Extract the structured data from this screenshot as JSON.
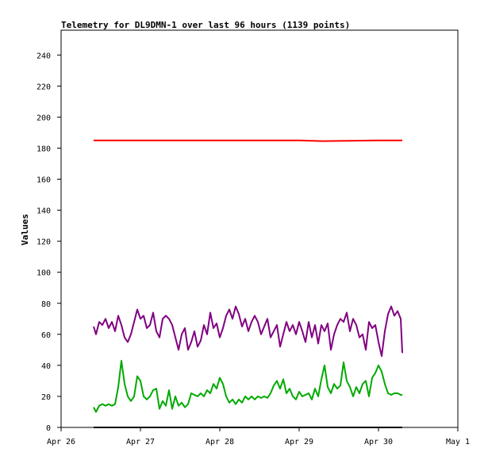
{
  "chart_data": {
    "type": "line",
    "title": "Telemetry for DL9DMN-1 over last 96 hours (1139 points)",
    "xlabel": "",
    "ylabel": "Values",
    "ylim": [
      0,
      256
    ],
    "yticks": [
      0,
      20,
      40,
      60,
      80,
      100,
      120,
      140,
      160,
      180,
      200,
      220,
      240
    ],
    "xlim": [
      "Apr 26",
      "May 1"
    ],
    "xticks": [
      "Apr 26",
      "Apr 27",
      "Apr 28",
      "Apr 29",
      "Apr 30",
      "May 1"
    ],
    "x_tick_days": [
      0,
      1,
      2,
      3,
      4,
      5
    ],
    "grid": false,
    "legend": "none",
    "series": [
      {
        "color": "#ff0000",
        "x": [
          0.41,
          1.0,
          2.0,
          3.0,
          3.3,
          4.0,
          4.3
        ],
        "values": [
          185,
          185,
          185,
          185,
          184.5,
          185,
          185
        ]
      },
      {
        "color": "#800080",
        "x": [
          0.41,
          0.44,
          0.48,
          0.52,
          0.56,
          0.6,
          0.64,
          0.68,
          0.72,
          0.76,
          0.8,
          0.84,
          0.88,
          0.92,
          0.96,
          1.0,
          1.04,
          1.08,
          1.12,
          1.16,
          1.2,
          1.24,
          1.28,
          1.32,
          1.36,
          1.4,
          1.44,
          1.48,
          1.52,
          1.56,
          1.6,
          1.64,
          1.68,
          1.72,
          1.76,
          1.8,
          1.84,
          1.88,
          1.92,
          1.96,
          2.0,
          2.04,
          2.08,
          2.12,
          2.16,
          2.2,
          2.24,
          2.28,
          2.32,
          2.36,
          2.4,
          2.44,
          2.48,
          2.52,
          2.56,
          2.6,
          2.64,
          2.68,
          2.72,
          2.76,
          2.8,
          2.84,
          2.88,
          2.92,
          2.96,
          3.0,
          3.04,
          3.08,
          3.12,
          3.16,
          3.2,
          3.24,
          3.28,
          3.32,
          3.36,
          3.4,
          3.44,
          3.48,
          3.52,
          3.56,
          3.6,
          3.64,
          3.68,
          3.72,
          3.76,
          3.8,
          3.84,
          3.88,
          3.92,
          3.96,
          4.0,
          4.04,
          4.08,
          4.12,
          4.16,
          4.2,
          4.24,
          4.28,
          4.3
        ],
        "values": [
          65,
          60,
          68,
          66,
          70,
          64,
          68,
          62,
          72,
          66,
          58,
          55,
          60,
          68,
          76,
          70,
          72,
          64,
          66,
          74,
          62,
          58,
          70,
          72,
          70,
          66,
          58,
          50,
          60,
          64,
          50,
          55,
          62,
          52,
          56,
          66,
          60,
          74,
          64,
          67,
          58,
          64,
          72,
          76,
          70,
          78,
          73,
          65,
          70,
          62,
          68,
          72,
          68,
          60,
          65,
          70,
          58,
          62,
          66,
          52,
          60,
          68,
          62,
          66,
          60,
          68,
          62,
          55,
          68,
          58,
          66,
          54,
          66,
          62,
          67,
          50,
          60,
          66,
          70,
          68,
          74,
          62,
          70,
          66,
          58,
          60,
          50,
          68,
          64,
          66,
          55,
          46,
          62,
          73,
          78,
          72,
          75,
          70,
          48
        ]
      },
      {
        "color": "#00aa00",
        "x": [
          0.41,
          0.44,
          0.48,
          0.52,
          0.56,
          0.6,
          0.64,
          0.68,
          0.72,
          0.76,
          0.8,
          0.84,
          0.88,
          0.92,
          0.96,
          1.0,
          1.04,
          1.08,
          1.12,
          1.16,
          1.2,
          1.24,
          1.28,
          1.32,
          1.36,
          1.4,
          1.44,
          1.48,
          1.52,
          1.56,
          1.6,
          1.64,
          1.68,
          1.72,
          1.76,
          1.8,
          1.84,
          1.88,
          1.92,
          1.96,
          2.0,
          2.04,
          2.08,
          2.12,
          2.16,
          2.2,
          2.24,
          2.28,
          2.32,
          2.36,
          2.4,
          2.44,
          2.48,
          2.52,
          2.56,
          2.6,
          2.64,
          2.68,
          2.72,
          2.76,
          2.8,
          2.84,
          2.88,
          2.92,
          2.96,
          3.0,
          3.04,
          3.08,
          3.12,
          3.16,
          3.2,
          3.24,
          3.28,
          3.32,
          3.36,
          3.4,
          3.44,
          3.48,
          3.52,
          3.56,
          3.6,
          3.64,
          3.68,
          3.72,
          3.76,
          3.8,
          3.84,
          3.88,
          3.92,
          3.96,
          4.0,
          4.04,
          4.08,
          4.12,
          4.16,
          4.2,
          4.24,
          4.28,
          4.3
        ],
        "values": [
          13,
          10,
          14,
          15,
          14,
          15,
          14,
          15,
          26,
          43,
          28,
          20,
          17,
          20,
          33,
          30,
          20,
          18,
          20,
          24,
          25,
          12,
          17,
          14,
          24,
          12,
          20,
          14,
          16,
          13,
          15,
          22,
          21,
          20,
          22,
          20,
          24,
          22,
          28,
          25,
          32,
          28,
          20,
          16,
          18,
          15,
          18,
          16,
          20,
          18,
          20,
          18,
          20,
          19,
          20,
          19,
          22,
          27,
          30,
          25,
          31,
          22,
          25,
          20,
          18,
          23,
          20,
          21,
          22,
          18,
          25,
          20,
          31,
          40,
          26,
          22,
          28,
          25,
          27,
          42,
          30,
          26,
          20,
          26,
          22,
          28,
          30,
          20,
          32,
          35,
          40,
          36,
          28,
          22,
          21,
          22,
          22,
          21,
          21
        ],
        "note_y": ""
      },
      {
        "color": "#000000",
        "x": [
          0.41,
          4.3
        ],
        "values": [
          0,
          0
        ]
      }
    ]
  }
}
